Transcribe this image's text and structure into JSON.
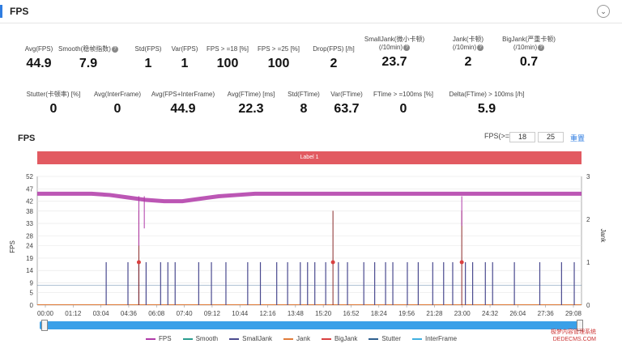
{
  "header": {
    "title": "FPS",
    "collapse_icon": "chevron-down-icon"
  },
  "metrics_row1": [
    {
      "label": "Avg(FPS)",
      "value": "44.9",
      "help": false
    },
    {
      "label": "Smooth(稳帧指数)",
      "value": "7.9",
      "help": true
    },
    {
      "label": "Std(FPS)",
      "value": "1",
      "help": false
    },
    {
      "label": "Var(FPS)",
      "value": "1",
      "help": false
    },
    {
      "label": "FPS > =18 [%]",
      "value": "100",
      "help": false
    },
    {
      "label": "FPS > =25 [%]",
      "value": "100",
      "help": false
    },
    {
      "label": "Drop(FPS) [/h]",
      "value": "2",
      "help": false
    },
    {
      "label": "SmallJank(微小卡顿)\n(/10min)",
      "value": "23.7",
      "help": true
    },
    {
      "label": "Jank(卡顿)\n(/10min)",
      "value": "2",
      "help": true
    },
    {
      "label": "BigJank(严重卡顿)\n(/10min)",
      "value": "0.7",
      "help": true
    }
  ],
  "metrics_row2": [
    {
      "label": "Stutter(卡顿率) [%]",
      "value": "0"
    },
    {
      "label": "Avg(InterFrame)",
      "value": "0"
    },
    {
      "label": "Avg(FPS+InterFrame)",
      "value": "44.9"
    },
    {
      "label": "Avg(FTime) [ms]",
      "value": "22.3"
    },
    {
      "label": "Std(FTime)",
      "value": "8"
    },
    {
      "label": "Var(FTime)",
      "value": "63.7"
    },
    {
      "label": "FTime > =100ms [%]",
      "value": "0"
    },
    {
      "label": "Delta(FTime) > 100ms [/h]",
      "value": "5.9"
    }
  ],
  "chart_section": {
    "title": "FPS",
    "fps_threshold_label": "FPS(>=)",
    "threshold_1": "18",
    "threshold_2": "25",
    "reset_label": "重置",
    "label_band": "Label 1"
  },
  "chart_data": {
    "type": "line",
    "title": "",
    "xlabel": "",
    "ylabel": "FPS",
    "y2label": "Jank",
    "ylim": [
      0,
      52
    ],
    "y2lim": [
      0,
      3
    ],
    "y_ticks": [
      0,
      5,
      9,
      14,
      19,
      24,
      28,
      33,
      38,
      42,
      47,
      52
    ],
    "y2_ticks": [
      0,
      1,
      2,
      3
    ],
    "x_ticks": [
      "00:00",
      "01:12",
      "03:04",
      "04:36",
      "06:08",
      "07:40",
      "09:12",
      "10:44",
      "12:16",
      "13:48",
      "15:20",
      "16:52",
      "18:24",
      "19:56",
      "21:28",
      "23:00",
      "24:32",
      "26:04",
      "27:36",
      "29:08"
    ],
    "series": [
      {
        "name": "FPS",
        "color": "#b03aa8",
        "x": [
          0,
          1,
          2,
          3,
          4,
          5,
          6,
          7,
          8,
          9,
          10,
          11,
          12,
          13,
          14,
          15,
          16,
          17,
          18,
          19,
          20,
          21,
          22,
          23,
          24,
          25,
          26,
          27,
          28,
          29,
          30
        ],
        "values": [
          45,
          45,
          45,
          45,
          44.5,
          43.5,
          42.5,
          42,
          42,
          43,
          44,
          44.5,
          45,
          45,
          45,
          45,
          45,
          45,
          45,
          45,
          45,
          45,
          45,
          45,
          45,
          45,
          45,
          45,
          45,
          45,
          45
        ]
      },
      {
        "name": "Smooth",
        "color": "#2a9d8f"
      },
      {
        "name": "SmallJank",
        "color": "#4a4a8f",
        "jank_events_min": [
          3.8,
          5.0,
          5.6,
          6.0,
          6.8,
          7.2,
          7.6,
          8.9,
          9.6,
          10.4,
          11.6,
          12.3,
          13.2,
          13.8,
          14.5,
          14.9,
          15.3,
          15.9,
          16.6,
          17.1,
          18.0,
          18.6,
          19.2,
          19.6,
          20.4,
          21.0,
          21.8,
          22.4,
          22.9,
          23.6,
          24.0,
          24.7,
          25.1,
          26.3,
          27.7,
          28.9,
          29.6
        ]
      },
      {
        "name": "Jank",
        "color": "#e07b39"
      },
      {
        "name": "BigJank",
        "color": "#d94040",
        "events_min": [
          5.6,
          16.3,
          23.4
        ]
      },
      {
        "name": "Stutter",
        "color": "#2f5f8f"
      },
      {
        "name": "InterFrame",
        "color": "#40b0e0"
      }
    ]
  },
  "legend": [
    "FPS",
    "Smooth",
    "SmallJank",
    "Jank",
    "BigJank",
    "Stutter",
    "InterFrame"
  ],
  "watermark": {
    "line1": "极梦内容管理系统",
    "line2": "DEDECMS.COM"
  }
}
